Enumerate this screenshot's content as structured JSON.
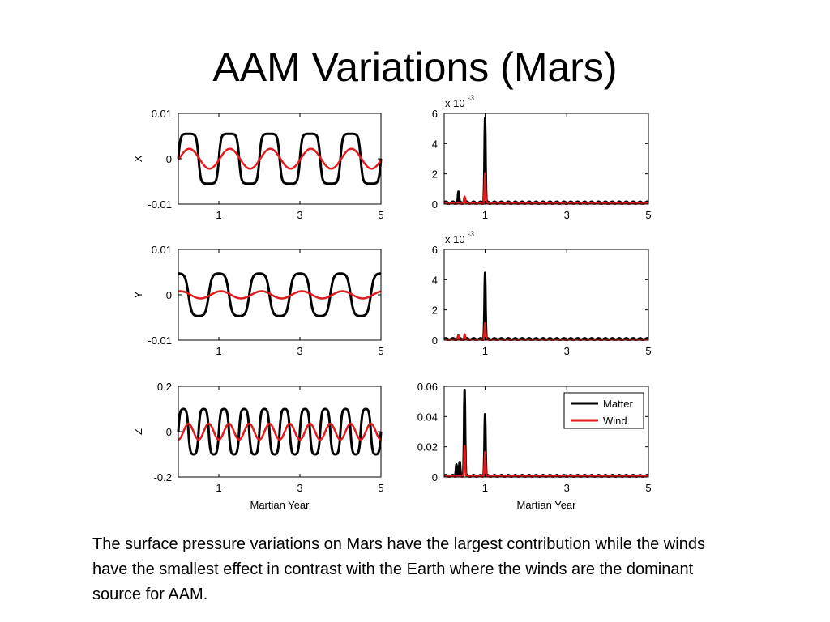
{
  "slide": {
    "title": "AAM Variations (Mars)",
    "caption": "The surface pressure variations on Mars have the largest contribution while the winds have the smallest effect in contrast with the Earth where the winds are the dominant source for AAM."
  },
  "colors": {
    "matter": "#000000",
    "wind": "#e41a1c"
  },
  "chart_data": [
    {
      "type": "line",
      "panel": "X time series",
      "ylabel": "X",
      "xlabel": "",
      "xlim": [
        0,
        5
      ],
      "xticks": [
        1,
        3,
        5
      ],
      "ylim": [
        -0.01,
        0.01
      ],
      "yticks": [
        0.01,
        0,
        -0.01
      ],
      "ytick_labels": [
        "0.01",
        "0",
        "-0.01"
      ],
      "series": [
        {
          "style": "matter",
          "amplitude": 0.0055,
          "period": 1.0,
          "phase": 0.0,
          "sharpness": 3
        },
        {
          "style": "wind",
          "amplitude": 0.0022,
          "period": 1.0,
          "phase": 0.02,
          "sharpness": 0
        }
      ]
    },
    {
      "type": "line",
      "panel": "X spectrum",
      "ylabel": "",
      "xlabel": "",
      "xlim": [
        0,
        5
      ],
      "xticks": [
        1,
        3,
        5
      ],
      "ylim": [
        0,
        6
      ],
      "yticks": [
        0,
        2,
        4,
        6
      ],
      "ytick_labels": [
        "0",
        "2",
        "4",
        "6"
      ],
      "exponent": "-3",
      "series": [
        {
          "style": "matter",
          "peaks": [
            [
              0.35,
              0.7
            ],
            [
              0.5,
              0.35
            ],
            [
              1.0,
              5.6
            ]
          ],
          "floor": 0.1
        },
        {
          "style": "wind",
          "peaks": [
            [
              0.5,
              0.45
            ],
            [
              1.0,
              2.0
            ]
          ],
          "floor": 0.04
        }
      ]
    },
    {
      "type": "line",
      "panel": "Y time series",
      "ylabel": "Y",
      "xlabel": "",
      "xlim": [
        0,
        5
      ],
      "xticks": [
        1,
        3,
        5
      ],
      "ylim": [
        -0.01,
        0.01
      ],
      "yticks": [
        0.01,
        0,
        -0.01
      ],
      "ytick_labels": [
        "0.01",
        "0",
        "-0.01"
      ],
      "series": [
        {
          "style": "matter",
          "amplitude": 0.0047,
          "period": 1.0,
          "phase": -0.25,
          "sharpness": 2
        },
        {
          "style": "wind",
          "amplitude": 0.0008,
          "period": 1.0,
          "phase": -0.2,
          "sharpness": 0
        }
      ]
    },
    {
      "type": "line",
      "panel": "Y spectrum",
      "ylabel": "",
      "xlabel": "",
      "xlim": [
        0,
        5
      ],
      "xticks": [
        1,
        3,
        5
      ],
      "ylim": [
        0,
        6
      ],
      "yticks": [
        0,
        2,
        4,
        6
      ],
      "ytick_labels": [
        "0",
        "2",
        "4",
        "6"
      ],
      "exponent": "-3",
      "series": [
        {
          "style": "matter",
          "peaks": [
            [
              0.35,
              0.2
            ],
            [
              1.0,
              4.4
            ]
          ],
          "floor": 0.08
        },
        {
          "style": "wind",
          "peaks": [
            [
              0.35,
              0.25
            ],
            [
              0.5,
              0.35
            ],
            [
              1.0,
              1.1
            ]
          ],
          "floor": 0.03
        }
      ]
    },
    {
      "type": "line",
      "panel": "Z time series",
      "ylabel": "Z",
      "xlabel": "Martian Year",
      "xlim": [
        0,
        5
      ],
      "xticks": [
        1,
        3,
        5
      ],
      "ylim": [
        -0.2,
        0.2
      ],
      "yticks": [
        0.2,
        0,
        -0.2
      ],
      "ytick_labels": [
        "0.2",
        "0",
        "-0.2"
      ],
      "series": [
        {
          "style": "matter",
          "amplitude": 0.1,
          "period": 0.5,
          "phase": 0.0,
          "sharpness": 2
        },
        {
          "style": "wind",
          "amplitude": 0.035,
          "period": 0.5,
          "phase": 0.25,
          "sharpness": 0
        }
      ]
    },
    {
      "type": "line",
      "panel": "Z spectrum",
      "ylabel": "",
      "xlabel": "Martian Year",
      "xlim": [
        0,
        5
      ],
      "xticks": [
        1,
        3,
        5
      ],
      "ylim": [
        0,
        0.06
      ],
      "yticks": [
        0,
        0.02,
        0.04,
        0.06
      ],
      "ytick_labels": [
        "0",
        "0.02",
        "0.04",
        "0.06"
      ],
      "legend": {
        "position": "top-right",
        "entries": [
          {
            "label": "Matter",
            "style": "matter"
          },
          {
            "label": "Wind",
            "style": "wind"
          }
        ]
      },
      "series": [
        {
          "style": "matter",
          "peaks": [
            [
              0.3,
              0.008
            ],
            [
              0.38,
              0.009
            ],
            [
              0.5,
              0.057
            ],
            [
              1.0,
              0.041
            ]
          ],
          "floor": 0.0008
        },
        {
          "style": "wind",
          "peaks": [
            [
              0.5,
              0.02
            ],
            [
              1.0,
              0.016
            ]
          ],
          "floor": 0.0005
        }
      ]
    }
  ]
}
